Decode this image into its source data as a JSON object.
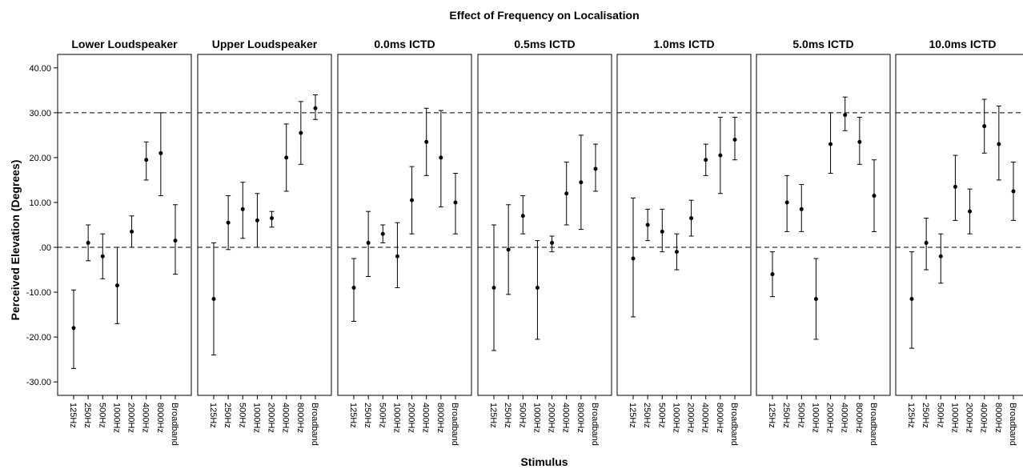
{
  "chart_data": {
    "type": "scatter",
    "subtype": "error-bar",
    "title": "Effect of Frequency on Localisation",
    "xlabel": "Stimulus",
    "ylabel": "Perceived Elevation (Degrees)",
    "ylim": [
      -33,
      43
    ],
    "yticks": [
      40,
      30,
      20,
      10,
      0,
      -10,
      -20,
      -30
    ],
    "ytick_labels": [
      "40.00",
      "30.00",
      "20.00",
      "10.00",
      ".00",
      "-10.00",
      "-20.00",
      "-30.00"
    ],
    "reference_lines": [
      30,
      0
    ],
    "grid": false,
    "categories": [
      "125Hz",
      "250Hz",
      "500Hz",
      "1000Hz",
      "2000Hz",
      "4000Hz",
      "8000Hz",
      "Broadband"
    ],
    "panels": [
      {
        "title": "Lower Loudspeaker",
        "mean": [
          -18,
          1,
          -2,
          -8.5,
          3.5,
          19.5,
          21,
          1.5
        ],
        "lower": [
          -27,
          -3,
          -7,
          -17,
          0,
          15,
          11.5,
          -6
        ],
        "upper": [
          -9.5,
          5,
          3,
          0,
          7,
          23.5,
          30,
          9.5
        ]
      },
      {
        "title": "Upper Loudspeaker",
        "mean": [
          -11.5,
          5.5,
          8.5,
          6,
          6.5,
          20,
          25.5,
          31
        ],
        "lower": [
          -24,
          -0.5,
          2,
          0,
          4.5,
          12.5,
          18.5,
          28.5
        ],
        "upper": [
          1,
          11.5,
          14.5,
          12,
          8,
          27.5,
          32.5,
          34
        ]
      },
      {
        "title": "0.0ms ICTD",
        "mean": [
          -9,
          1,
          3,
          -2,
          10.5,
          23.5,
          20,
          10
        ],
        "lower": [
          -16.5,
          -6.5,
          1,
          -9,
          3,
          16,
          9,
          3
        ],
        "upper": [
          -2.5,
          8,
          5,
          5.5,
          18,
          31,
          30.5,
          16.5
        ]
      },
      {
        "title": "0.5ms ICTD",
        "mean": [
          -9,
          -0.5,
          7,
          -9,
          1,
          12,
          14.5,
          17.5
        ],
        "lower": [
          -23,
          -10.5,
          3,
          -20.5,
          -1,
          5,
          4,
          12.5
        ],
        "upper": [
          5,
          9.5,
          11.5,
          1.5,
          2.5,
          19,
          25,
          23
        ]
      },
      {
        "title": "1.0ms ICTD",
        "mean": [
          -2.5,
          5,
          3.5,
          -1,
          6.5,
          19.5,
          20.5,
          24
        ],
        "lower": [
          -15.5,
          1.5,
          -1,
          -5,
          2.5,
          16,
          12,
          19.5
        ],
        "upper": [
          11,
          8.5,
          8.5,
          3,
          10.5,
          23,
          29,
          29
        ]
      },
      {
        "title": "5.0ms ICTD",
        "mean": [
          -6,
          10,
          8.5,
          -11.5,
          23,
          29.5,
          23.5,
          11.5
        ],
        "lower": [
          -11,
          3.5,
          3.5,
          -20.5,
          16.5,
          26,
          18.5,
          3.5
        ],
        "upper": [
          -1,
          16,
          14,
          -2.5,
          30,
          33.5,
          29,
          19.5
        ]
      },
      {
        "title": "10.0ms ICTD",
        "mean": [
          -11.5,
          1,
          -2,
          13.5,
          8,
          27,
          23,
          12.5
        ],
        "lower": [
          -22.5,
          -5,
          -8,
          6,
          3,
          21,
          15,
          6
        ],
        "upper": [
          -1,
          6.5,
          3,
          20.5,
          13,
          33,
          31.5,
          19
        ]
      }
    ]
  }
}
